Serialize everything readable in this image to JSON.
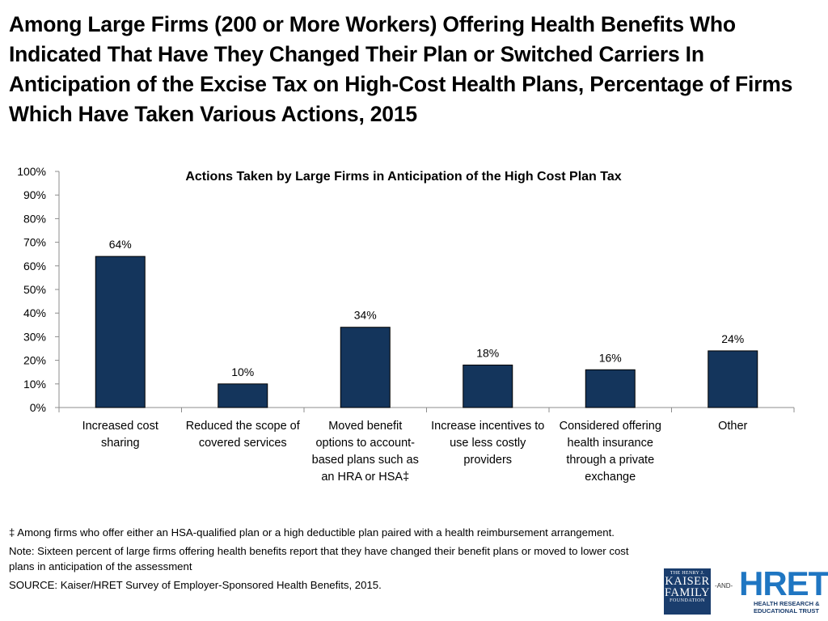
{
  "page": {
    "title": "Among Large Firms (200 or More Workers) Offering Health Benefits Who Indicated That Have They Changed Their Plan or Switched Carriers In Anticipation of the Excise Tax on High-Cost Health Plans, Percentage of Firms Which Have Taken Various Actions, 2015"
  },
  "chart_data": {
    "type": "bar",
    "title": "Actions Taken by Large Firms in Anticipation of the High Cost Plan Tax",
    "categories": [
      [
        "Increased cost",
        "sharing"
      ],
      [
        "Reduced the scope of",
        "covered services"
      ],
      [
        "Moved benefit",
        "options to account-",
        "based plans such as",
        "an HRA or HSA‡"
      ],
      [
        "Increase incentives to",
        "use less costly",
        "providers"
      ],
      [
        "Considered offering",
        "health insurance",
        "through a private",
        "exchange"
      ],
      [
        "Other"
      ]
    ],
    "values": [
      64,
      10,
      34,
      18,
      16,
      24
    ],
    "data_labels": [
      "64%",
      "10%",
      "34%",
      "18%",
      "16%",
      "24%"
    ],
    "ylim": [
      0,
      100
    ],
    "y_ticks": [
      0,
      10,
      20,
      30,
      40,
      50,
      60,
      70,
      80,
      90,
      100
    ],
    "y_tick_labels": [
      "0%",
      "10%",
      "20%",
      "30%",
      "40%",
      "50%",
      "60%",
      "70%",
      "80%",
      "90%",
      "100%"
    ],
    "xlabel": "",
    "ylabel": "",
    "grid": false,
    "legend": "none",
    "bar_color": "#14355c"
  },
  "footnotes": {
    "dagger": "‡ Among firms who offer either an HSA-qualified plan or a high deductible plan paired with a health reimbursement arrangement.",
    "note": "Note:  Sixteen percent of large firms  offering health benefits report that they have changed their benefit plans or moved to lower cost plans in anticipation of the assessment",
    "source": "SOURCE: Kaiser/HRET Survey of Employer-Sponsored Health Benefits, 2015."
  },
  "logos": {
    "kff": {
      "line1": "THE HENRY J.",
      "line2": "KAISER",
      "line3": "FAMILY",
      "line4": "FOUNDATION"
    },
    "and": "-AND-",
    "hret": {
      "mark": "HRET",
      "line1": "HEALTH RESEARCH &",
      "line2": "EDUCATIONAL TRUST"
    }
  }
}
